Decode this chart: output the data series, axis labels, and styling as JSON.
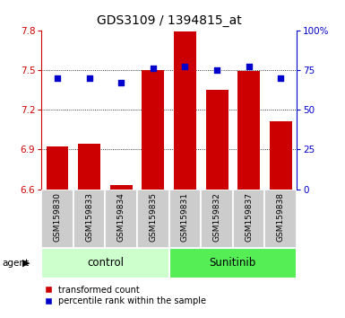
{
  "title": "GDS3109 / 1394815_at",
  "samples": [
    "GSM159830",
    "GSM159833",
    "GSM159834",
    "GSM159835",
    "GSM159831",
    "GSM159832",
    "GSM159837",
    "GSM159838"
  ],
  "red_values": [
    6.92,
    6.94,
    6.63,
    7.5,
    7.79,
    7.35,
    7.49,
    7.11
  ],
  "blue_values_pct": [
    70,
    70,
    67,
    76,
    77,
    75,
    77,
    70
  ],
  "ylim_left": [
    6.6,
    7.8
  ],
  "ylim_right": [
    0,
    100
  ],
  "yticks_left": [
    6.6,
    6.9,
    7.2,
    7.5,
    7.8
  ],
  "yticks_right": [
    0,
    25,
    50,
    75,
    100
  ],
  "ytick_labels_left": [
    "6.6",
    "6.9",
    "7.2",
    "7.5",
    "7.8"
  ],
  "ytick_labels_right": [
    "0",
    "25",
    "50",
    "75",
    "100%"
  ],
  "red_color": "#cc0000",
  "blue_color": "#0000cc",
  "bar_bottom": 6.6,
  "group_control_color": "#ccffcc",
  "group_sunitinib_color": "#55ee55",
  "xlabel_area_bg": "#cccccc",
  "legend_red": "transformed count",
  "legend_blue": "percentile rank within the sample",
  "bar_width": 0.7,
  "n_control": 4,
  "n_sunitinib": 4
}
